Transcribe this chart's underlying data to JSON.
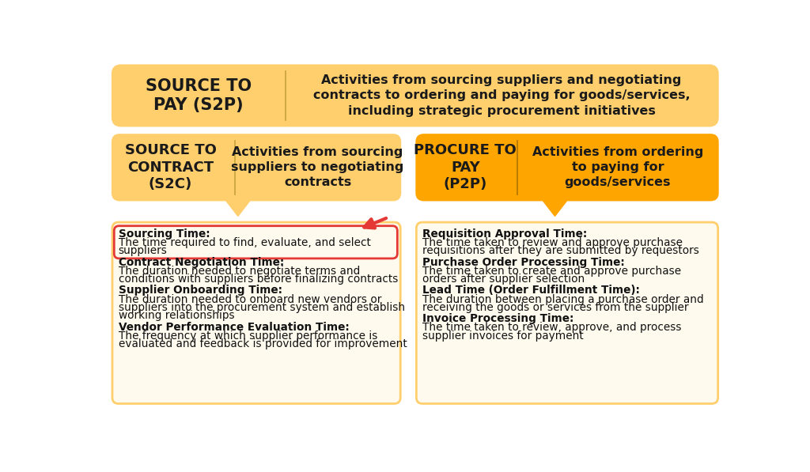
{
  "bg_color": "#ffffff",
  "light_orange": "#FFCF6E",
  "dark_orange": "#FFA500",
  "red_border": "#E53935",
  "text_color": "#1a1a1a",
  "s2p_title": "SOURCE TO\nPAY (S2P)",
  "s2p_desc": "Activities from sourcing suppliers and negotiating\ncontracts to ordering and paying for goods/services,\nincluding strategic procurement initiatives",
  "s2c_title": "SOURCE TO\nCONTRACT\n(S2C)",
  "s2c_desc": "Activities from sourcing\nsuppliers to negotiating\ncontracts",
  "p2p_title": "PROCURE TO\nPAY\n(P2P)",
  "p2p_desc": "Activities from ordering\nto paying for\ngoods/services",
  "left_items": [
    {
      "bold": "Sourcing Time:",
      "normal": "The time required to find, evaluate, and select\nsuppliers",
      "highlight": true
    },
    {
      "bold": "Contract Negotiation Time:",
      "normal": "The duration needed to negotiate terms and\nconditions with suppliers before finalizing contracts",
      "highlight": false
    },
    {
      "bold": "Supplier Onboarding Time:",
      "normal": "The duration needed to onboard new vendors or\nsuppliers into the procurement system and establish\nworking relationships",
      "highlight": false
    },
    {
      "bold": "Vendor Performance Evaluation Time:",
      "normal": "The frequency at which supplier performance is\nevaluated and feedback is provided for improvement",
      "highlight": false
    }
  ],
  "right_items": [
    {
      "bold": "Requisition Approval Time:",
      "normal": "The time taken to review and approve purchase\nrequisitions after they are submitted by requestors",
      "highlight": false
    },
    {
      "bold": "Purchase Order Processing Time:",
      "normal": "The time taken to create and approve purchase\norders after supplier selection",
      "highlight": false
    },
    {
      "bold": "Lead Time (Order Fulfillment Time):",
      "normal": "The duration between placing a purchase order and\nreceiving the goods or services from the supplier",
      "highlight": false
    },
    {
      "bold": "Invoice Processing Time:",
      "normal": "The time taken to review, approve, and process\nsupplier invoices for payment",
      "highlight": false
    }
  ]
}
